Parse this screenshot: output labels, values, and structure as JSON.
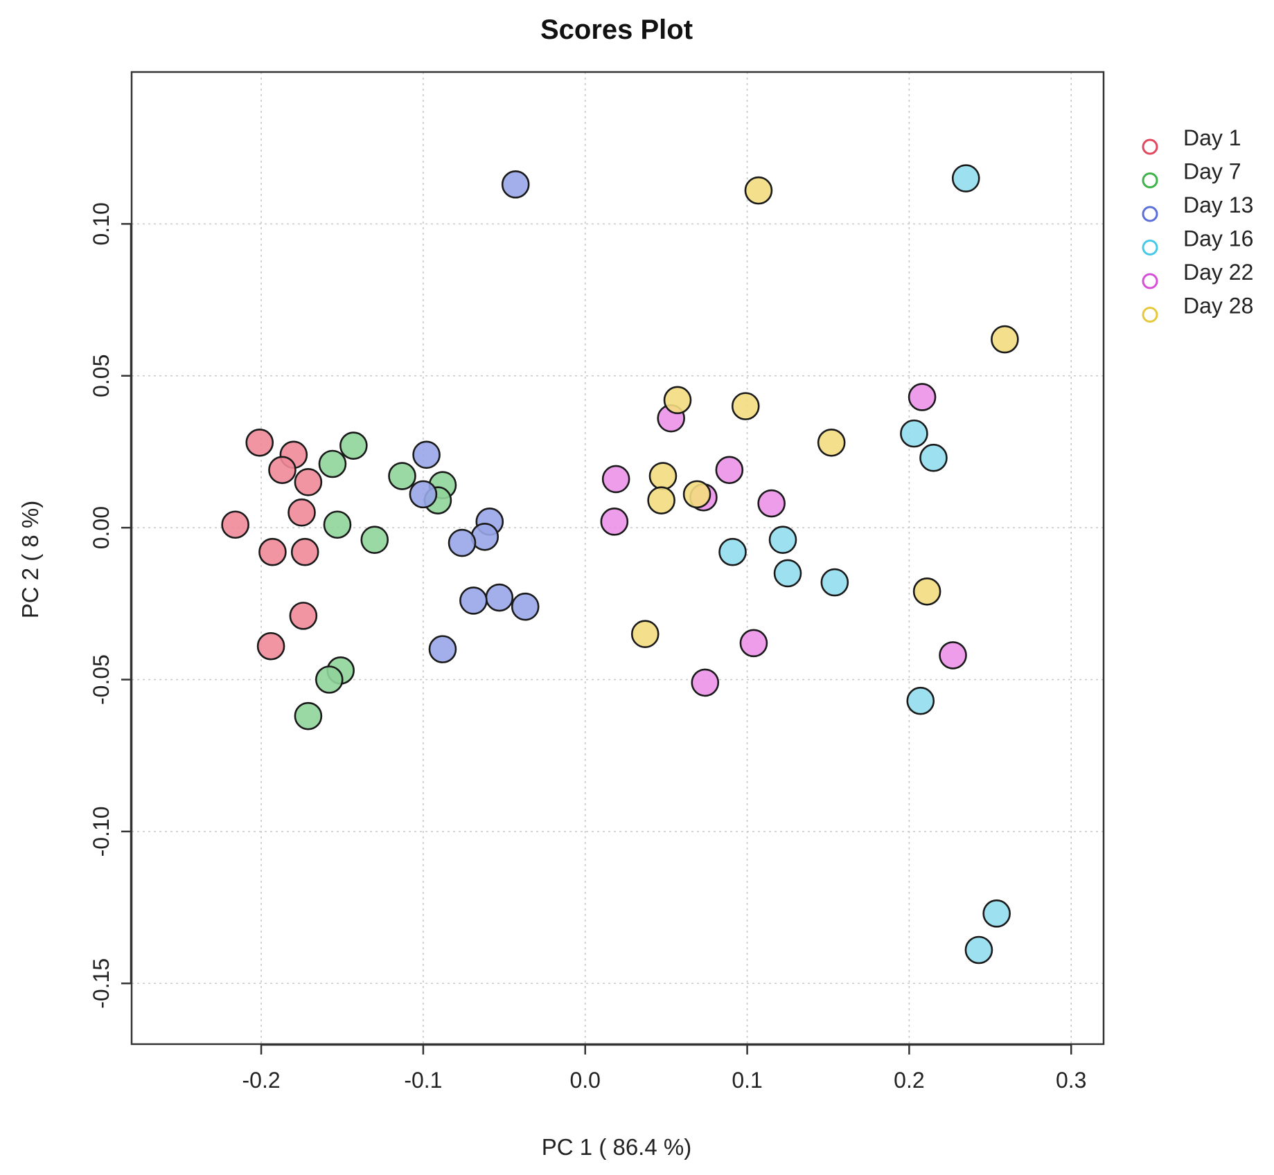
{
  "chart_data": {
    "type": "scatter",
    "title": "Scores Plot",
    "xlabel": "PC 1 ( 86.4 %)",
    "ylabel": "PC 2 ( 8 %)",
    "xlim": [
      -0.28,
      0.32
    ],
    "ylim": [
      -0.17,
      0.15
    ],
    "xticks": [
      -0.2,
      -0.1,
      0.0,
      0.1,
      0.2,
      0.3
    ],
    "xtick_labels": [
      "-0.2",
      "-0.1",
      "0.0",
      "0.1",
      "0.2",
      "0.3"
    ],
    "yticks": [
      -0.15,
      -0.1,
      -0.05,
      0.0,
      0.05,
      0.1
    ],
    "ytick_labels": [
      "-0.15",
      "-0.10",
      "-0.05",
      "0.00",
      "0.05",
      "0.10"
    ],
    "grid": true,
    "legend_position": "top-right-outside",
    "series": [
      {
        "name": "Day 1",
        "color": "#e0485f",
        "fill": "#f08a99",
        "points": [
          [
            -0.201,
            0.028
          ],
          [
            -0.18,
            0.024
          ],
          [
            -0.187,
            0.019
          ],
          [
            -0.171,
            0.015
          ],
          [
            -0.216,
            0.001
          ],
          [
            -0.175,
            0.005
          ],
          [
            -0.193,
            -0.008
          ],
          [
            -0.173,
            -0.008
          ],
          [
            -0.174,
            -0.029
          ],
          [
            -0.194,
            -0.039
          ]
        ]
      },
      {
        "name": "Day 7",
        "color": "#3fb24a",
        "fill": "#8fd49a",
        "points": [
          [
            -0.143,
            0.027
          ],
          [
            -0.156,
            0.021
          ],
          [
            -0.113,
            0.017
          ],
          [
            -0.088,
            0.014
          ],
          [
            -0.091,
            0.009
          ],
          [
            -0.153,
            0.001
          ],
          [
            -0.13,
            -0.004
          ],
          [
            -0.151,
            -0.047
          ],
          [
            -0.158,
            -0.05
          ],
          [
            -0.171,
            -0.062
          ]
        ]
      },
      {
        "name": "Day 13",
        "color": "#5a6fd8",
        "fill": "#98a6e8",
        "points": [
          [
            -0.043,
            0.113
          ],
          [
            -0.098,
            0.024
          ],
          [
            -0.1,
            0.011
          ],
          [
            -0.059,
            0.002
          ],
          [
            -0.062,
            -0.003
          ],
          [
            -0.076,
            -0.005
          ],
          [
            -0.053,
            -0.023
          ],
          [
            -0.069,
            -0.024
          ],
          [
            -0.037,
            -0.026
          ],
          [
            -0.088,
            -0.04
          ]
        ]
      },
      {
        "name": "Day 16",
        "color": "#46c9e8",
        "fill": "#92def0",
        "points": [
          [
            0.235,
            0.115
          ],
          [
            0.203,
            0.031
          ],
          [
            0.215,
            0.023
          ],
          [
            0.091,
            -0.008
          ],
          [
            0.122,
            -0.004
          ],
          [
            0.125,
            -0.015
          ],
          [
            0.154,
            -0.018
          ],
          [
            0.207,
            -0.057
          ],
          [
            0.254,
            -0.127
          ],
          [
            0.243,
            -0.139
          ]
        ]
      },
      {
        "name": "Day 22",
        "color": "#d44fd6",
        "fill": "#eb92e8",
        "points": [
          [
            0.208,
            0.043
          ],
          [
            0.053,
            0.036
          ],
          [
            0.019,
            0.016
          ],
          [
            0.089,
            0.019
          ],
          [
            0.073,
            0.01
          ],
          [
            0.115,
            0.008
          ],
          [
            0.018,
            0.002
          ],
          [
            0.104,
            -0.038
          ],
          [
            0.074,
            -0.051
          ],
          [
            0.227,
            -0.042
          ]
        ]
      },
      {
        "name": "Day 28",
        "color": "#e6c93b",
        "fill": "#f3dd80",
        "points": [
          [
            0.107,
            0.111
          ],
          [
            0.259,
            0.062
          ],
          [
            0.057,
            0.042
          ],
          [
            0.099,
            0.04
          ],
          [
            0.152,
            0.028
          ],
          [
            0.048,
            0.017
          ],
          [
            0.047,
            0.009
          ],
          [
            0.069,
            0.011
          ],
          [
            0.037,
            -0.035
          ],
          [
            0.211,
            -0.021
          ]
        ]
      }
    ]
  }
}
